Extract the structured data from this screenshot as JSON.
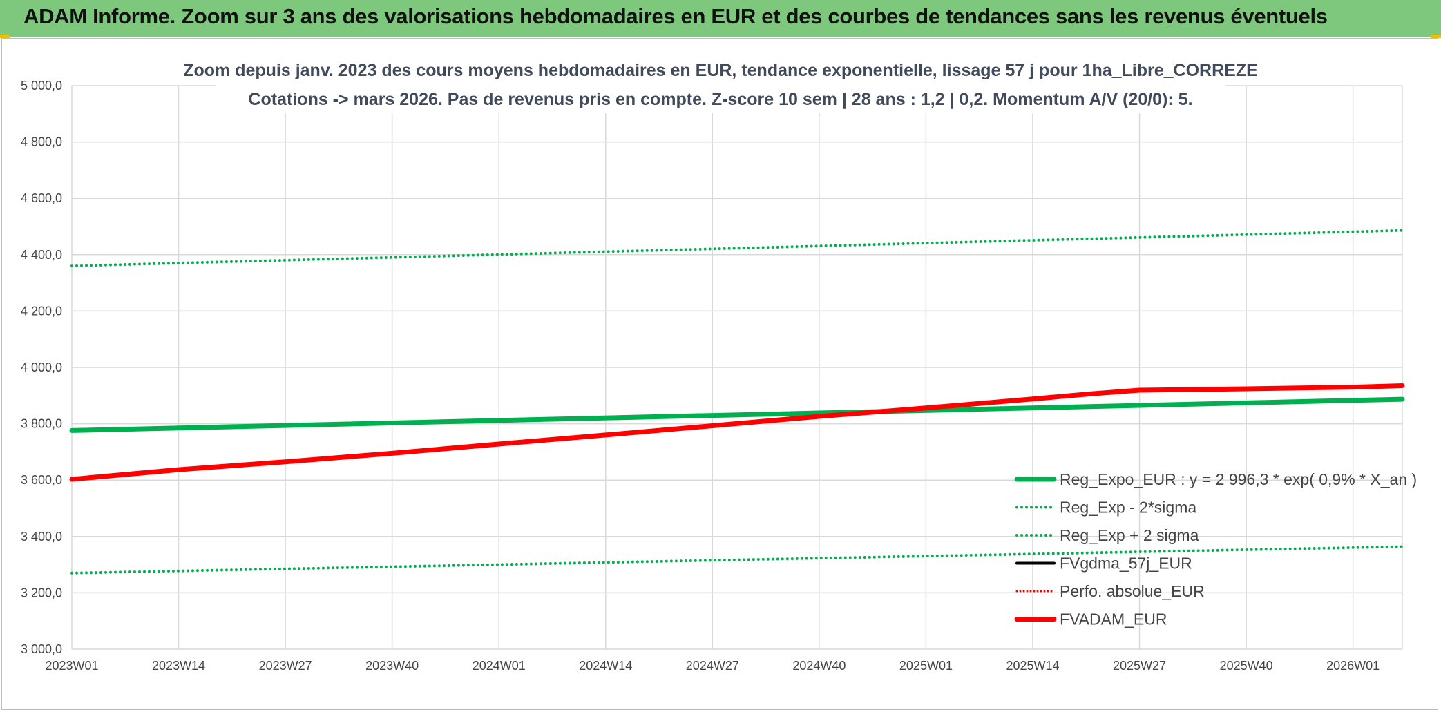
{
  "banner": {
    "title": "ADAM Informe. Zoom sur 3 ans des valorisations hebdomadaires en EUR et des courbes de tendances sans les revenus éventuels"
  },
  "colors": {
    "banner_bg": "#7dc87c",
    "banner_accent": "#e8c200",
    "reg_expo": "#00b050",
    "fvadam": "#ff0000",
    "fvgdma": "#000000",
    "grid": "#d9d9d9"
  },
  "chart_data": {
    "type": "line",
    "title_line1": "Zoom depuis janv. 2023 des cours moyens hebdomadaires en EUR, tendance exponentielle, lissage 57 j pour 1ha_Libre_CORREZE",
    "title_line2": "Cotations -> mars 2026. Pas de revenus pris en compte. Z-score 10 sem | 28 ans : 1,2 | 0,2. Momentum A/V (20/0): 5.",
    "ylim": [
      3000,
      5000
    ],
    "yticks": [
      3000,
      3200,
      3400,
      3600,
      3800,
      4000,
      4200,
      4400,
      4600,
      4800,
      5000
    ],
    "ytick_labels": [
      "3 000,0",
      "3 200,0",
      "3 400,0",
      "3 600,0",
      "3 800,0",
      "4 000,0",
      "4 200,0",
      "4 400,0",
      "4 600,0",
      "4 800,0",
      "5 000,0"
    ],
    "x_categories": [
      "2023W01",
      "2023W14",
      "2023W27",
      "2023W40",
      "2024W01",
      "2024W14",
      "2024W27",
      "2024W40",
      "2025W01",
      "2025W14",
      "2025W27",
      "2025W40",
      "2026W01"
    ],
    "x_range_weeks": [
      0,
      162
    ],
    "grid": true,
    "legend_position": "bottom-right",
    "series": [
      {
        "name": "Reg_Expo_EUR : y = 2 996,3 * exp( 0,9% *  X_an )",
        "style": "solid-thick",
        "color": "#00b050",
        "x_weeks": [
          0,
          162
        ],
        "y": [
          3776,
          3887
        ]
      },
      {
        "name": "Reg_Exp - 2*sigma",
        "style": "dotted",
        "color": "#00b050",
        "x_weeks": [
          0,
          162
        ],
        "y": [
          3270,
          3364
        ]
      },
      {
        "name": "Reg_Exp + 2 sigma",
        "style": "dotted",
        "color": "#00b050",
        "x_weeks": [
          0,
          162
        ],
        "y": [
          4360,
          4486
        ]
      },
      {
        "name": "FVgdma_57j_EUR",
        "style": "solid",
        "color": "#000000",
        "x_weeks": [
          0,
          13,
          26,
          39,
          52,
          65,
          78,
          91,
          104,
          117,
          124,
          130,
          143,
          156,
          162
        ],
        "y": [
          3603,
          3637,
          3665,
          3695,
          3728,
          3760,
          3793,
          3826,
          3856,
          3888,
          3904,
          3916,
          3922,
          3929,
          3934
        ]
      },
      {
        "name": "Perfo. absolue_EUR",
        "style": "dotted",
        "color": "#ff0000",
        "x_weeks": [
          0,
          13,
          26,
          39,
          52,
          65,
          78,
          91,
          104,
          117,
          124,
          130,
          143,
          156,
          162
        ],
        "y": [
          3603,
          3637,
          3665,
          3695,
          3728,
          3760,
          3793,
          3826,
          3856,
          3888,
          3906,
          3919,
          3924,
          3930,
          3935
        ]
      },
      {
        "name": "FVADAM_EUR",
        "style": "solid-thick",
        "color": "#ff0000",
        "x_weeks": [
          0,
          13,
          26,
          39,
          52,
          65,
          78,
          91,
          104,
          117,
          124,
          130,
          143,
          156,
          162
        ],
        "y": [
          3603,
          3637,
          3665,
          3695,
          3728,
          3760,
          3793,
          3826,
          3856,
          3888,
          3906,
          3919,
          3924,
          3930,
          3935
        ]
      }
    ]
  }
}
